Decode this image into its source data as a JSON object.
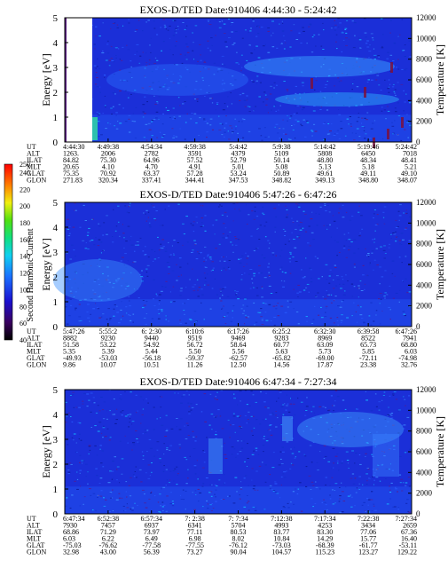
{
  "chart_data": [
    {
      "type": "heatmap",
      "title": "EXOS-D/TED   Date:910406  4:44:30 - 5:24:42",
      "ylabel": "Energy [eV]",
      "ylabel_right": "Temperature [K]",
      "ylim": [
        0,
        5
      ],
      "ylim_right": [
        0,
        12000
      ],
      "yticks": [
        "0",
        "1",
        "2",
        "3",
        "4",
        "5"
      ],
      "yticks_right": [
        "0",
        "2000",
        "4000",
        "6000",
        "8000",
        "10000",
        "12000"
      ],
      "row_labels": [
        "UT",
        "ALT",
        "ILAT",
        "MLT",
        "GLAT",
        "GLON"
      ],
      "columns": [
        [
          "4:44:30",
          "1263.",
          "84.82",
          "20.65",
          "75.35",
          "271.83"
        ],
        [
          "4:49:38",
          "2006",
          "75.30",
          "4.10",
          "70.92",
          "320.34"
        ],
        [
          "4:54:34",
          "2782",
          "64.96",
          "4.70",
          "63.37",
          "337.41"
        ],
        [
          "4:59:38",
          "3591",
          "57.52",
          "4.91",
          "57.28",
          "344.41"
        ],
        [
          "5:4:42",
          "4379",
          "52.79",
          "5.01",
          "53.24",
          "347.53"
        ],
        [
          "5:9:38",
          "5109",
          "50.14",
          "5.08",
          "50.89",
          "348.82"
        ],
        [
          "5:14:42",
          "5808",
          "48.80",
          "5.13",
          "49.61",
          "349.13"
        ],
        [
          "5:19:46",
          "6450",
          "48.34",
          "5.18",
          "49.11",
          "348.80"
        ],
        [
          "5:24:42",
          "7018",
          "48.41",
          "5.21",
          "49.10",
          "348.07"
        ]
      ]
    },
    {
      "type": "heatmap",
      "title": "EXOS-D/TED   Date:910406  5:47:26 - 6:47:26",
      "ylabel": "Energy [eV]",
      "ylabel_right": "Temperature [K]",
      "ylim": [
        0,
        5
      ],
      "ylim_right": [
        0,
        12000
      ],
      "yticks": [
        "0",
        "1",
        "2",
        "3",
        "4",
        "5"
      ],
      "yticks_right": [
        "0",
        "2000",
        "4000",
        "6000",
        "8000",
        "10000",
        "12000"
      ],
      "row_labels": [
        "UT",
        "ALT",
        "ILAT",
        "MLT",
        "GLAT",
        "GLON"
      ],
      "columns": [
        [
          "5:47:26",
          "8882",
          "51.58",
          "5.35",
          "-49.93",
          "9.86"
        ],
        [
          "5:55:2",
          "9230",
          "53.22",
          "5.39",
          "-53.03",
          "10.07"
        ],
        [
          "6: 2:30",
          "9440",
          "54.92",
          "5.44",
          "-56.18",
          "10.51"
        ],
        [
          "6:10:6",
          "9519",
          "56.72",
          "5.50",
          "-59.37",
          "11.26"
        ],
        [
          "6:17:26",
          "9469",
          "58.64",
          "5.56",
          "-62.57",
          "12.50"
        ],
        [
          "6:25:2",
          "9283",
          "60.77",
          "5.63",
          "-65.82",
          "14.56"
        ],
        [
          "6:32:30",
          "8969",
          "63.09",
          "5.73",
          "-69.00",
          "17.87"
        ],
        [
          "6:39:58",
          "8522",
          "65.73",
          "5.85",
          "-72.11",
          "23.38"
        ],
        [
          "6:47:26",
          "7941",
          "68.80",
          "6.03",
          "-74.98",
          "32.76"
        ]
      ],
      "colorbar": {
        "label": "Second Harmonic Current",
        "ticks": [
          "40",
          "60",
          "80",
          "100",
          "120",
          "140",
          "160",
          "180",
          "200",
          "220",
          "240",
          "250"
        ]
      }
    },
    {
      "type": "heatmap",
      "title": "EXOS-D/TED   Date:910406  6:47:34 - 7:27:34",
      "ylabel": "Energy [eV]",
      "ylabel_right": "Temperature [K]",
      "ylim": [
        0,
        5
      ],
      "ylim_right": [
        0,
        12000
      ],
      "yticks": [
        "0",
        "1",
        "2",
        "3",
        "4",
        "5"
      ],
      "yticks_right": [
        "0",
        "2000",
        "4000",
        "6000",
        "8000",
        "10000",
        "12000"
      ],
      "row_labels": [
        "UT",
        "ALT",
        "ILAT",
        "MLT",
        "GLAT",
        "GLON"
      ],
      "columns": [
        [
          "6:47:34",
          "7930",
          "68.86",
          "6.03",
          "-75.03",
          "32.98"
        ],
        [
          "6:52:38",
          "7457",
          "71.29",
          "6.22",
          "-76.62",
          "43.00"
        ],
        [
          "6:57:34",
          "6937",
          "73.97",
          "6.49",
          "-77.58",
          "56.39"
        ],
        [
          "7: 2:38",
          "6341",
          "77.11",
          "6.98",
          "-77.55",
          "73.27"
        ],
        [
          "7: 7:34",
          "5704",
          "80.53",
          "8.02",
          "-76.12",
          "90.04"
        ],
        [
          "7:12:38",
          "4993",
          "83.77",
          "10.84",
          "-73.03",
          "104.57"
        ],
        [
          "7:17:34",
          "4253",
          "83.30",
          "14.29",
          "-68.39",
          "115.23"
        ],
        [
          "7:22:38",
          "3434",
          "77.06",
          "15.77",
          "-61.77",
          "123.27"
        ],
        [
          "7:27:34",
          "2659",
          "67.36",
          "16.40",
          "-53.11",
          "129.22"
        ]
      ]
    }
  ]
}
